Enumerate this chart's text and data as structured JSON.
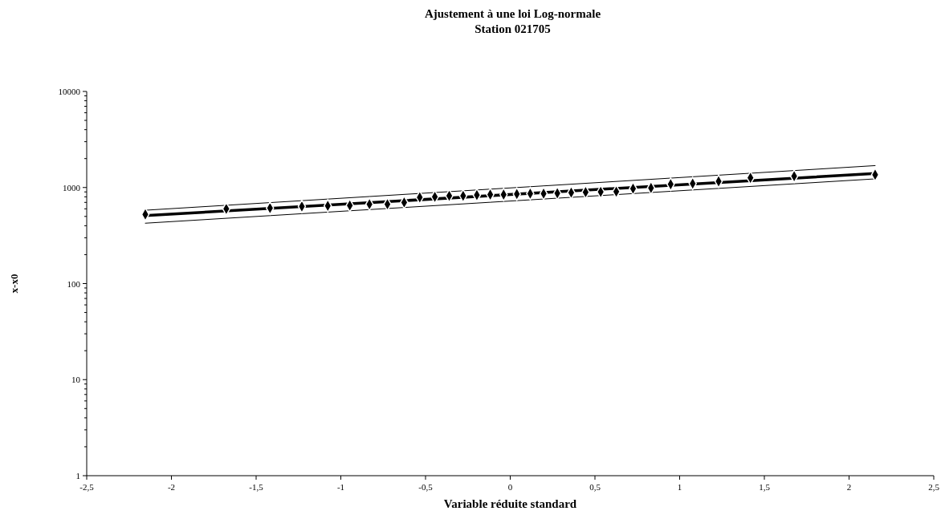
{
  "chart_data": {
    "type": "scatter",
    "title": "Ajustement à une loi Log-normale",
    "subtitle": "Station 021705",
    "xlabel": "Variable réduite standard",
    "ylabel": "x-x0",
    "xlim": [
      -2.5,
      2.5
    ],
    "xticks": [
      {
        "value": -2.5,
        "label": "-2,5"
      },
      -2,
      {
        "value": -1.5,
        "label": "-1,5"
      },
      -1,
      {
        "value": -0.5,
        "label": "-0,5"
      },
      0,
      {
        "value": 0.5,
        "label": "0,5"
      },
      1,
      {
        "value": 1.5,
        "label": "1,5"
      },
      2,
      {
        "value": 2.5,
        "label": "2,5"
      }
    ],
    "ylim": [
      1,
      10000
    ],
    "log": "y",
    "yticks": [
      1,
      {
        "value": 2,
        "label": null
      },
      {
        "value": 3,
        "label": null
      },
      {
        "value": 4,
        "label": null
      },
      {
        "value": 5,
        "label": null
      },
      {
        "value": 6,
        "label": null
      },
      {
        "value": 7,
        "label": null
      },
      {
        "value": 8,
        "label": null
      },
      {
        "value": 9,
        "label": null
      },
      10,
      {
        "value": 20,
        "label": null
      },
      {
        "value": 30,
        "label": null
      },
      {
        "value": 40,
        "label": null
      },
      {
        "value": 50,
        "label": null
      },
      {
        "value": 60,
        "label": null
      },
      {
        "value": 70,
        "label": null
      },
      {
        "value": 80,
        "label": null
      },
      {
        "value": 90,
        "label": null
      },
      100,
      {
        "value": 200,
        "label": null
      },
      {
        "value": 300,
        "label": null
      },
      {
        "value": 400,
        "label": null
      },
      {
        "value": 500,
        "label": null
      },
      {
        "value": 600,
        "label": null
      },
      {
        "value": 700,
        "label": null
      },
      {
        "value": 800,
        "label": null
      },
      {
        "value": 900,
        "label": null
      },
      1000,
      {
        "value": 2000,
        "label": null
      },
      {
        "value": 3000,
        "label": null
      },
      {
        "value": 4000,
        "label": null
      },
      {
        "value": 5000,
        "label": null
      },
      {
        "value": 6000,
        "label": null
      },
      {
        "value": 7000,
        "label": null
      },
      {
        "value": 8000,
        "label": null
      },
      {
        "value": 9000,
        "label": null
      },
      10000
    ],
    "grid": false,
    "series": [
      {
        "type": "line",
        "color": "#000000",
        "line_style": "solid",
        "marker": "none",
        "x": [
          -2.154,
          2.154
        ],
        "values": [
          510,
          1400
        ]
      },
      {
        "type": "line",
        "color": "#000000",
        "line_style": "solid",
        "marker": "none",
        "x": [
          -2.154,
          2.154
        ],
        "values": [
          580,
          1690
        ]
      },
      {
        "type": "line",
        "color": "#000000",
        "line_style": "solid",
        "marker": "none",
        "x": [
          -2.154,
          2.154
        ],
        "values": [
          425,
          1230
        ]
      },
      {
        "color": "#000000",
        "marker": "diamond",
        "x": [
          -2.154,
          -1.676,
          -1.418,
          -1.23,
          -1.077,
          -0.947,
          -0.831,
          -0.725,
          -0.626,
          -0.534,
          -0.445,
          -0.36,
          -0.278,
          -0.197,
          -0.118,
          -0.039,
          0.039,
          0.118,
          0.197,
          0.278,
          0.36,
          0.445,
          0.534,
          0.626,
          0.725,
          0.831,
          0.947,
          1.077,
          1.23,
          1.418,
          1.676,
          2.154
        ],
        "values": [
          525,
          600,
          610,
          635,
          645,
          650,
          670,
          670,
          700,
          790,
          800,
          820,
          820,
          835,
          845,
          845,
          855,
          865,
          865,
          870,
          885,
          895,
          900,
          905,
          975,
          990,
          1080,
          1100,
          1160,
          1260,
          1310,
          1360
        ]
      }
    ]
  }
}
